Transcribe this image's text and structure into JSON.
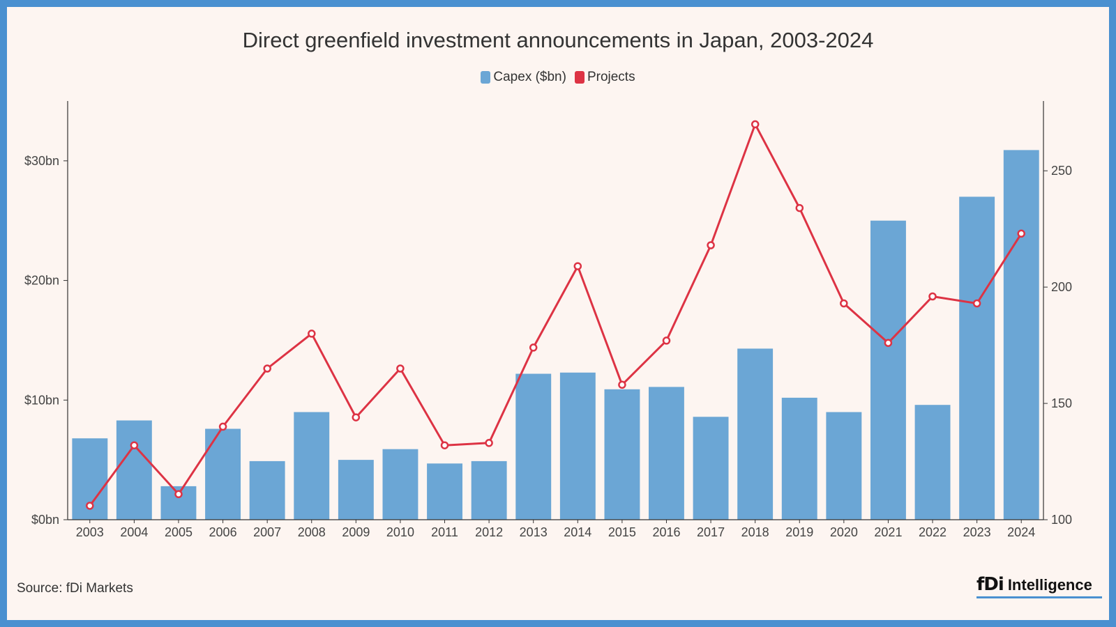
{
  "colors": {
    "capex": "#6ba6d5",
    "projects": "#dd3344",
    "frame": "#4a90d0",
    "background": "#fdf5f1"
  },
  "chart_data": {
    "type": "bar+line",
    "title": "Direct greenfield investment announcements in Japan, 2003-2024",
    "legend": [
      {
        "name": "Capex ($bn)",
        "color": "#6ba6d5"
      },
      {
        "name": "Projects",
        "color": "#dd3344"
      }
    ],
    "legend_position": "top-center",
    "categories": [
      "2003",
      "2004",
      "2005",
      "2006",
      "2007",
      "2008",
      "2009",
      "2010",
      "2011",
      "2012",
      "2013",
      "2014",
      "2015",
      "2016",
      "2017",
      "2018",
      "2019",
      "2020",
      "2021",
      "2022",
      "2023",
      "2024"
    ],
    "series": [
      {
        "name": "Capex ($bn)",
        "type": "bar",
        "axis": "left",
        "values": [
          6.8,
          8.3,
          2.8,
          7.6,
          4.9,
          9.0,
          5.0,
          5.9,
          4.7,
          4.9,
          12.2,
          12.3,
          10.9,
          11.1,
          8.6,
          14.3,
          10.2,
          9.0,
          25.0,
          9.6,
          27.0,
          30.9
        ]
      },
      {
        "name": "Projects",
        "type": "line",
        "axis": "right",
        "values": [
          106,
          132,
          111,
          140,
          165,
          180,
          144,
          165,
          132,
          133,
          174,
          209,
          158,
          177,
          218,
          270,
          234,
          193,
          176,
          196,
          193,
          223
        ]
      }
    ],
    "y_left": {
      "range": [
        0,
        35
      ],
      "ticks": [
        0,
        10,
        20,
        30
      ],
      "tick_labels": [
        "$0bn",
        "$10bn",
        "$20bn",
        "$30bn"
      ]
    },
    "y_right": {
      "range": [
        100,
        280
      ],
      "ticks": [
        100,
        150,
        200,
        250
      ],
      "tick_labels": [
        "100",
        "150",
        "200",
        "250"
      ]
    },
    "grid": false
  },
  "footer": {
    "source": "Source: fDi Markets",
    "brand_mark": "fDi",
    "brand_word": "Intelligence"
  }
}
